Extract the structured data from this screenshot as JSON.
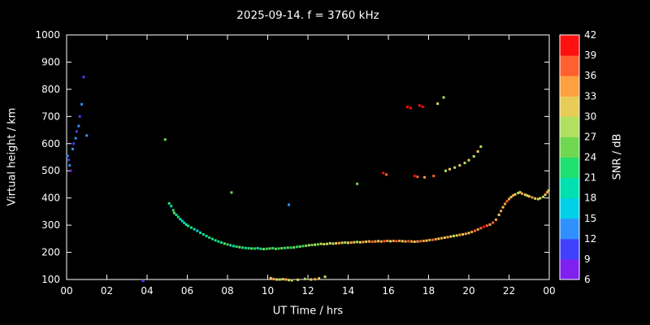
{
  "title": "2025-09-14. f = 3760 kHz",
  "chart_data": {
    "type": "scatter",
    "xlabel": "UT Time / hrs",
    "ylabel": "Virtual height / km",
    "xlim": [
      0,
      24
    ],
    "ylim": [
      100,
      1000
    ],
    "xticks": {
      "values": [
        0,
        2,
        4,
        6,
        8,
        10,
        12,
        14,
        16,
        18,
        20,
        22,
        24
      ],
      "labels": [
        "00",
        "02",
        "04",
        "06",
        "08",
        "10",
        "12",
        "14",
        "16",
        "18",
        "20",
        "22",
        "00"
      ]
    },
    "yticks": [
      100,
      200,
      300,
      400,
      500,
      600,
      700,
      800,
      900,
      1000
    ],
    "background": "#000000",
    "axis_color": "#ffffff",
    "colorbar": {
      "label": "SNR / dB",
      "min": 6,
      "max": 42,
      "ticks": [
        6,
        9,
        12,
        15,
        18,
        21,
        24,
        27,
        30,
        33,
        36,
        39,
        42
      ],
      "colors": [
        "#8020f0",
        "#4040ff",
        "#3090ff",
        "#00d0e8",
        "#00e0b0",
        "#20e070",
        "#70d850",
        "#b0e060",
        "#e8cc58",
        "#ffa040",
        "#ff6030",
        "#ff1010"
      ]
    },
    "points": [
      [
        0.05,
        555,
        12
      ],
      [
        0.1,
        540,
        9
      ],
      [
        0.15,
        520,
        12
      ],
      [
        0.2,
        500,
        6
      ],
      [
        0.3,
        580,
        12
      ],
      [
        0.35,
        600,
        9
      ],
      [
        0.45,
        620,
        12
      ],
      [
        0.5,
        645,
        9
      ],
      [
        0.6,
        665,
        12
      ],
      [
        0.65,
        700,
        9
      ],
      [
        0.75,
        745,
        12
      ],
      [
        0.85,
        845,
        9
      ],
      [
        1.0,
        630,
        12
      ],
      [
        3.8,
        95,
        9
      ],
      [
        4.9,
        615,
        24
      ],
      [
        5.1,
        380,
        21
      ],
      [
        5.2,
        370,
        18
      ],
      [
        5.3,
        355,
        21
      ],
      [
        5.35,
        345,
        24
      ],
      [
        5.45,
        338,
        18
      ],
      [
        5.55,
        330,
        21
      ],
      [
        5.65,
        322,
        18
      ],
      [
        5.75,
        315,
        15
      ],
      [
        5.85,
        308,
        18
      ],
      [
        5.95,
        302,
        21
      ],
      [
        6.05,
        297,
        18
      ],
      [
        6.2,
        291,
        21
      ],
      [
        6.35,
        285,
        18
      ],
      [
        6.5,
        279,
        15
      ],
      [
        6.65,
        272,
        18
      ],
      [
        6.8,
        266,
        21
      ],
      [
        6.95,
        260,
        18
      ],
      [
        7.1,
        254,
        21
      ],
      [
        7.25,
        249,
        18
      ],
      [
        7.4,
        244,
        21
      ],
      [
        7.55,
        240,
        18
      ],
      [
        7.7,
        236,
        21
      ],
      [
        7.85,
        232,
        24
      ],
      [
        8.0,
        229,
        21
      ],
      [
        8.2,
        420,
        24
      ],
      [
        8.15,
        226,
        21
      ],
      [
        8.3,
        223,
        18
      ],
      [
        8.45,
        221,
        21
      ],
      [
        8.6,
        219,
        24
      ],
      [
        8.75,
        217,
        21
      ],
      [
        8.9,
        216,
        18
      ],
      [
        9.05,
        215,
        21
      ],
      [
        9.2,
        214,
        24
      ],
      [
        9.35,
        214,
        21
      ],
      [
        9.5,
        215,
        18
      ],
      [
        9.65,
        213,
        21
      ],
      [
        9.8,
        212,
        24
      ],
      [
        9.95,
        213,
        21
      ],
      [
        10.1,
        214,
        24
      ],
      [
        10.25,
        215,
        21
      ],
      [
        10.4,
        213,
        24
      ],
      [
        10.55,
        214,
        21
      ],
      [
        10.7,
        215,
        24
      ],
      [
        10.85,
        216,
        21
      ],
      [
        11.0,
        217,
        24
      ],
      [
        11.15,
        217,
        21
      ],
      [
        11.3,
        218,
        24
      ],
      [
        11.45,
        220,
        21
      ],
      [
        11.6,
        221,
        24
      ],
      [
        11.75,
        223,
        21
      ],
      [
        11.9,
        224,
        24
      ],
      [
        12.05,
        226,
        27
      ],
      [
        12.2,
        227,
        24
      ],
      [
        12.35,
        228,
        27
      ],
      [
        12.5,
        229,
        24
      ],
      [
        11.05,
        375,
        12
      ],
      [
        10.15,
        105,
        30
      ],
      [
        10.3,
        102,
        33
      ],
      [
        10.45,
        100,
        30
      ],
      [
        10.6,
        100,
        27
      ],
      [
        10.75,
        101,
        30
      ],
      [
        10.9,
        100,
        33
      ],
      [
        11.05,
        98,
        30
      ],
      [
        11.2,
        97,
        27
      ],
      [
        11.5,
        99,
        30
      ],
      [
        11.85,
        102,
        27
      ],
      [
        12.15,
        100,
        30
      ],
      [
        12.35,
        101,
        33
      ],
      [
        12.55,
        104,
        30
      ],
      [
        12.85,
        110,
        27
      ],
      [
        12.65,
        231,
        27
      ],
      [
        12.8,
        230,
        30
      ],
      [
        12.95,
        231,
        27
      ],
      [
        13.1,
        233,
        30
      ],
      [
        13.25,
        232,
        27
      ],
      [
        13.4,
        233,
        30
      ],
      [
        13.55,
        234,
        33
      ],
      [
        13.7,
        235,
        30
      ],
      [
        13.85,
        236,
        27
      ],
      [
        14.0,
        235,
        30
      ],
      [
        14.15,
        236,
        33
      ],
      [
        14.3,
        237,
        30
      ],
      [
        14.45,
        238,
        27
      ],
      [
        14.6,
        237,
        30
      ],
      [
        14.75,
        238,
        33
      ],
      [
        14.9,
        239,
        30
      ],
      [
        15.05,
        240,
        33
      ],
      [
        15.2,
        239,
        36
      ],
      [
        15.35,
        240,
        33
      ],
      [
        15.5,
        241,
        30
      ],
      [
        15.65,
        240,
        33
      ],
      [
        15.8,
        241,
        36
      ],
      [
        15.95,
        242,
        33
      ],
      [
        16.1,
        241,
        30
      ],
      [
        16.25,
        242,
        33
      ],
      [
        16.4,
        241,
        36
      ],
      [
        16.55,
        242,
        33
      ],
      [
        16.7,
        241,
        30
      ],
      [
        16.85,
        240,
        33
      ],
      [
        17.0,
        241,
        36
      ],
      [
        17.15,
        240,
        33
      ],
      [
        17.3,
        239,
        30
      ],
      [
        17.45,
        240,
        33
      ],
      [
        17.6,
        241,
        36
      ],
      [
        17.75,
        242,
        33
      ],
      [
        17.9,
        243,
        30
      ],
      [
        18.05,
        245,
        33
      ],
      [
        18.2,
        246,
        36
      ],
      [
        18.35,
        248,
        33
      ],
      [
        18.5,
        250,
        30
      ],
      [
        18.65,
        252,
        33
      ],
      [
        18.8,
        254,
        30
      ],
      [
        18.95,
        256,
        33
      ],
      [
        19.1,
        258,
        30
      ],
      [
        19.25,
        260,
        27
      ],
      [
        19.4,
        262,
        30
      ],
      [
        19.55,
        264,
        33
      ],
      [
        19.7,
        266,
        30
      ],
      [
        19.85,
        268,
        33
      ],
      [
        20.0,
        271,
        30
      ],
      [
        20.15,
        275,
        33
      ],
      [
        20.3,
        279,
        36
      ],
      [
        20.45,
        284,
        33
      ],
      [
        20.6,
        289,
        36
      ],
      [
        20.75,
        294,
        39
      ],
      [
        20.9,
        298,
        36
      ],
      [
        21.05,
        302,
        33
      ],
      [
        21.2,
        309,
        36
      ],
      [
        21.35,
        320,
        33
      ],
      [
        21.5,
        338,
        30
      ],
      [
        21.6,
        352,
        33
      ],
      [
        21.7,
        366,
        30
      ],
      [
        21.8,
        378,
        33
      ],
      [
        21.9,
        388,
        36
      ],
      [
        22.0,
        396,
        33
      ],
      [
        22.1,
        403,
        30
      ],
      [
        22.2,
        409,
        33
      ],
      [
        22.3,
        413,
        30
      ],
      [
        22.45,
        418,
        27
      ],
      [
        22.55,
        421,
        30
      ],
      [
        22.65,
        416,
        33
      ],
      [
        22.8,
        412,
        30
      ],
      [
        22.9,
        409,
        27
      ],
      [
        23.0,
        406,
        30
      ],
      [
        23.15,
        402,
        33
      ],
      [
        23.3,
        398,
        30
      ],
      [
        23.45,
        396,
        27
      ],
      [
        23.55,
        399,
        30
      ],
      [
        23.7,
        404,
        27
      ],
      [
        23.8,
        412,
        30
      ],
      [
        23.9,
        421,
        33
      ],
      [
        23.97,
        428,
        30
      ],
      [
        14.45,
        452,
        24
      ],
      [
        15.75,
        492,
        39
      ],
      [
        15.9,
        486,
        36
      ],
      [
        16.95,
        735,
        39
      ],
      [
        17.1,
        731,
        42
      ],
      [
        17.3,
        481,
        39
      ],
      [
        17.45,
        478,
        36
      ],
      [
        17.55,
        740,
        39
      ],
      [
        17.7,
        736,
        42
      ],
      [
        17.8,
        476,
        33
      ],
      [
        18.25,
        481,
        36
      ],
      [
        18.45,
        747,
        30
      ],
      [
        18.75,
        770,
        27
      ],
      [
        18.85,
        500,
        27
      ],
      [
        19.05,
        506,
        30
      ],
      [
        19.3,
        512,
        27
      ],
      [
        19.55,
        520,
        30
      ],
      [
        19.8,
        529,
        27
      ],
      [
        20.0,
        539,
        30
      ],
      [
        20.25,
        553,
        27
      ],
      [
        20.45,
        571,
        30
      ],
      [
        20.6,
        589,
        27
      ]
    ]
  }
}
